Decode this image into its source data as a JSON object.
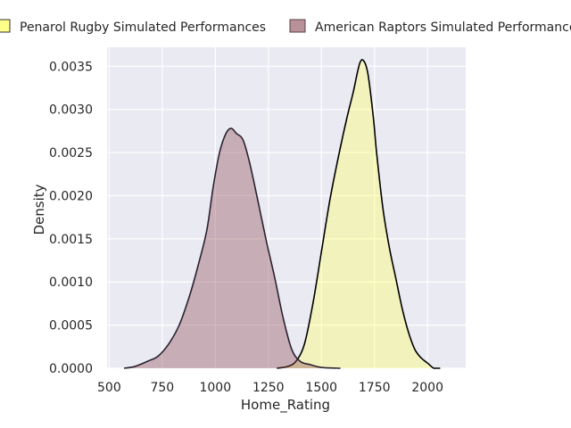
{
  "chart_data": {
    "type": "area",
    "xlabel": "Home_Rating",
    "ylabel": "Density",
    "xlim": [
      490,
      2180
    ],
    "ylim": [
      0,
      0.00372
    ],
    "x_ticks": [
      "500",
      "750",
      "1000",
      "1250",
      "1500",
      "1750",
      "2000"
    ],
    "y_ticks": [
      "0.0000",
      "0.0005",
      "0.0010",
      "0.0015",
      "0.0020",
      "0.0025",
      "0.0030",
      "0.0035"
    ],
    "grid": true,
    "legend_position": "top",
    "series": [
      {
        "name": "Penarol Rugby Simulated Performances",
        "color": "#ffff66",
        "edge_color": "#000000",
        "points": [
          [
            1290,
            0.0
          ],
          [
            1340,
            2e-05
          ],
          [
            1380,
            8e-05
          ],
          [
            1420,
            0.00028
          ],
          [
            1460,
            0.00075
          ],
          [
            1500,
            0.00135
          ],
          [
            1540,
            0.00195
          ],
          [
            1580,
            0.00245
          ],
          [
            1620,
            0.0029
          ],
          [
            1650,
            0.0032
          ],
          [
            1680,
            0.00353
          ],
          [
            1700,
            0.00356
          ],
          [
            1720,
            0.0034
          ],
          [
            1745,
            0.0029
          ],
          [
            1760,
            0.0025
          ],
          [
            1790,
            0.00185
          ],
          [
            1820,
            0.0014
          ],
          [
            1850,
            0.00105
          ],
          [
            1880,
            0.0007
          ],
          [
            1910,
            0.00042
          ],
          [
            1940,
            0.00022
          ],
          [
            1970,
            0.00012
          ],
          [
            2000,
            6e-05
          ],
          [
            2030,
            0.0
          ],
          [
            2060,
            0.0
          ]
        ]
      },
      {
        "name": "American Raptors Simulated Performances",
        "color": "#8b4a55",
        "edge_color": "#2b2230",
        "points": [
          [
            570,
            0.0
          ],
          [
            620,
            2e-05
          ],
          [
            680,
            8e-05
          ],
          [
            730,
            0.00014
          ],
          [
            780,
            0.00028
          ],
          [
            830,
            0.0005
          ],
          [
            880,
            0.00085
          ],
          [
            920,
            0.0012
          ],
          [
            960,
            0.0016
          ],
          [
            990,
            0.0021
          ],
          [
            1020,
            0.0025
          ],
          [
            1050,
            0.00272
          ],
          [
            1075,
            0.00278
          ],
          [
            1100,
            0.00272
          ],
          [
            1130,
            0.00265
          ],
          [
            1160,
            0.0024
          ],
          [
            1200,
            0.00195
          ],
          [
            1240,
            0.00148
          ],
          [
            1280,
            0.00105
          ],
          [
            1320,
            0.00058
          ],
          [
            1360,
            0.00022
          ],
          [
            1400,
            8e-05
          ],
          [
            1450,
            4e-05
          ],
          [
            1500,
            1e-05
          ],
          [
            1590,
            0.0
          ]
        ]
      }
    ]
  }
}
